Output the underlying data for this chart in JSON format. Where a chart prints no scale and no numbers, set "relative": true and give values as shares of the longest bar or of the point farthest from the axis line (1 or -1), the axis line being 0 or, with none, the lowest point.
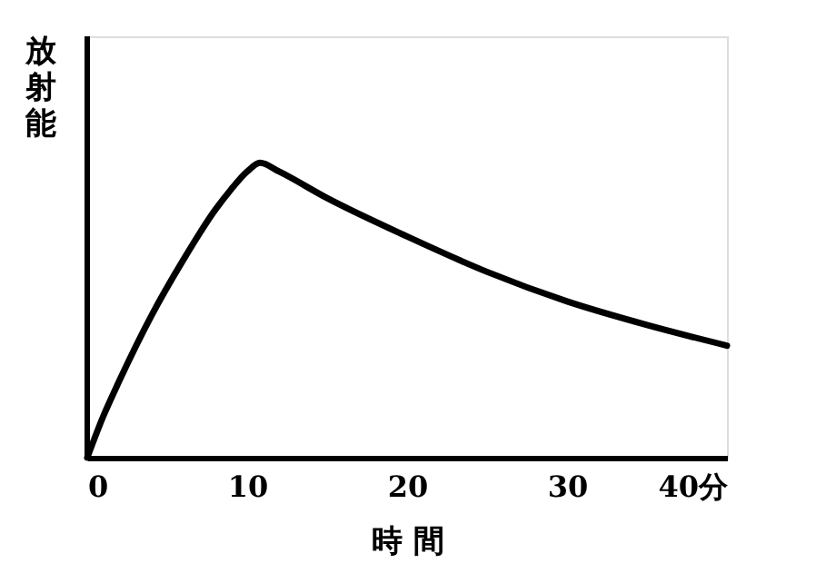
{
  "chart_data": {
    "type": "line",
    "relative": true,
    "xlabel": "時 間",
    "ylabel": "放射能",
    "xlim": [
      0,
      40
    ],
    "xticks": [
      0,
      10,
      20,
      30,
      {
        "value": 40,
        "label": "40分"
      }
    ],
    "grid": false,
    "marker": "none",
    "line_style": "solid",
    "x": [
      0,
      1,
      2,
      4,
      6,
      8,
      9,
      10,
      10.8,
      12,
      15,
      20,
      25,
      30,
      35,
      40
    ],
    "series": [
      {
        "color": "#000000",
        "values": [
          0,
          0.14,
          0.26,
          0.48,
          0.67,
          0.84,
          0.91,
          0.97,
          1.0,
          0.97,
          0.88,
          0.75,
          0.63,
          0.53,
          0.45,
          0.38
        ]
      }
    ]
  }
}
